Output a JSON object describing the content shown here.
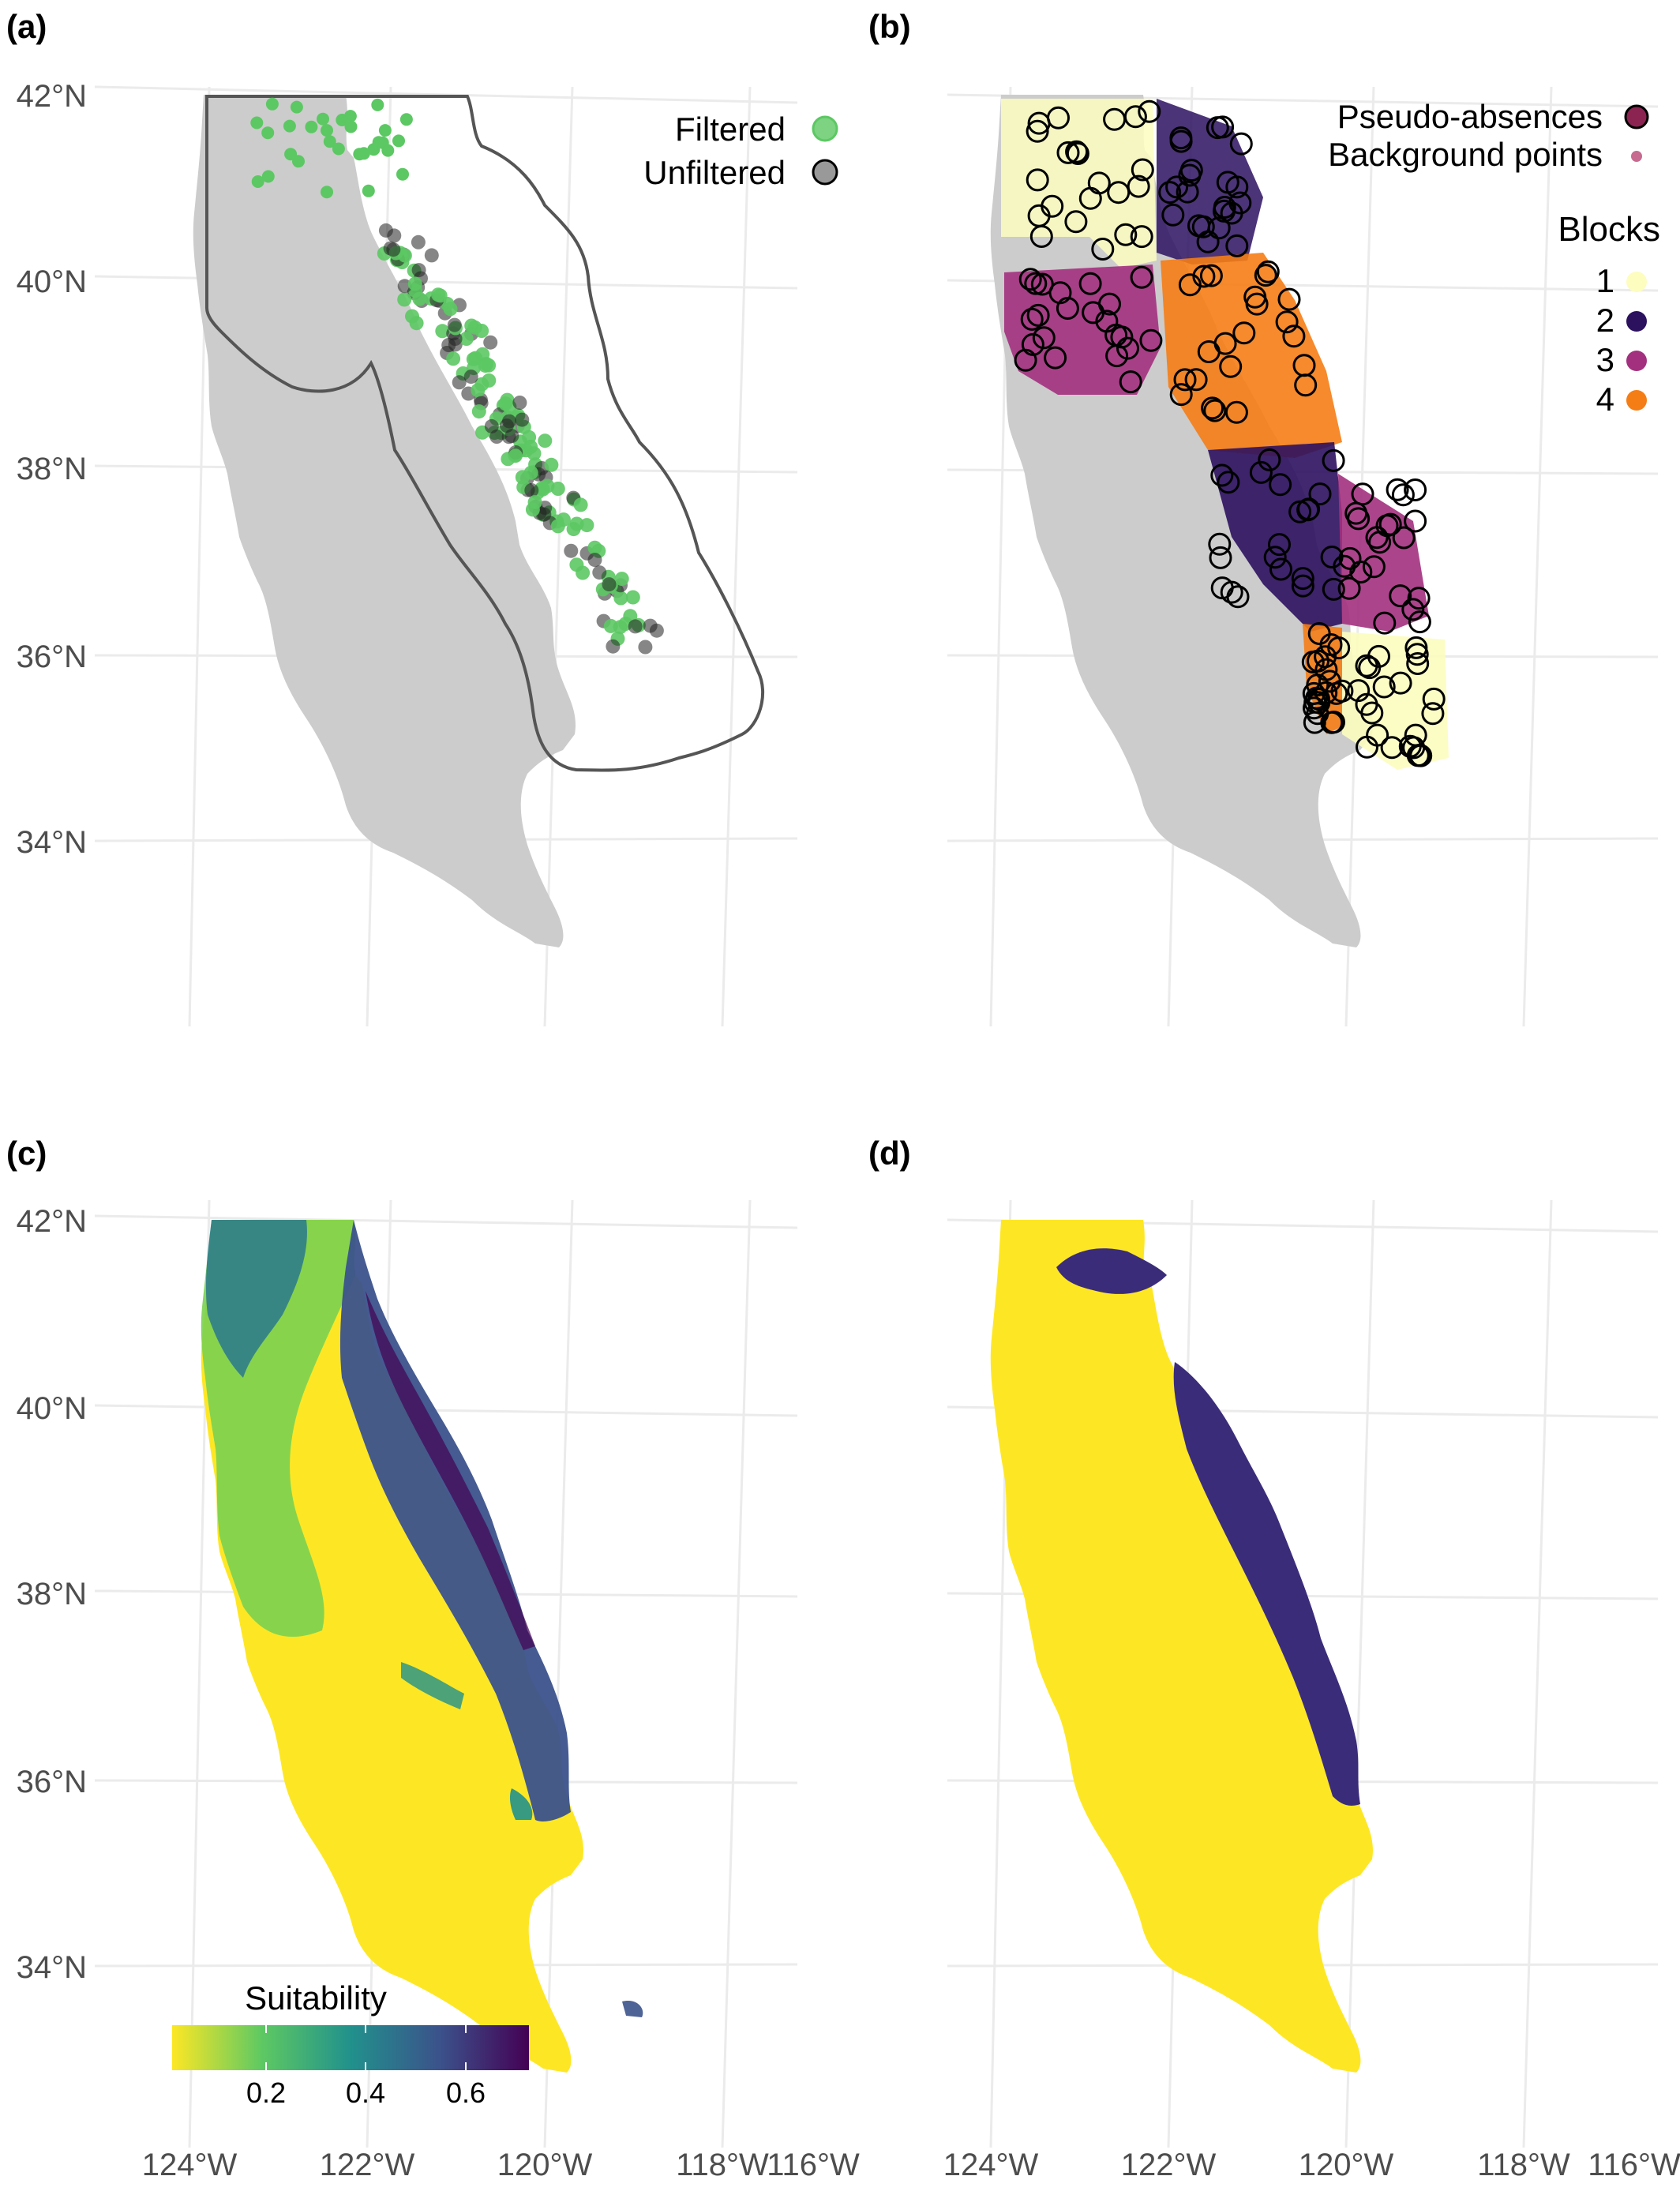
{
  "panels": {
    "a": {
      "label": "(a)"
    },
    "b": {
      "label": "(b)"
    },
    "c": {
      "label": "(c)"
    },
    "d": {
      "label": "(d)"
    }
  },
  "axes": {
    "lat_labels": [
      "42°N",
      "40°N",
      "38°N",
      "36°N",
      "34°N"
    ],
    "lon_labels": [
      "124°W",
      "122°W",
      "120°W",
      "118°W",
      "116°W"
    ]
  },
  "legend_a": {
    "items": [
      {
        "label": "Filtered",
        "color": "#5cc863"
      },
      {
        "label": "Unfiltered",
        "color": "#555555"
      }
    ]
  },
  "legend_b": {
    "points": [
      {
        "label": "Pseudo-absences",
        "color": "#8c2452"
      },
      {
        "label": "Background points",
        "color": "#c76a8f"
      }
    ],
    "blocks_title": "Blocks",
    "blocks": [
      {
        "label": "1",
        "color": "#fcfdbf"
      },
      {
        "label": "2",
        "color": "#2c115f"
      },
      {
        "label": "3",
        "color": "#a3307e"
      },
      {
        "label": "4",
        "color": "#f57d15"
      }
    ]
  },
  "legend_c": {
    "title": "Suitability",
    "ticks": [
      "0.2",
      "0.4",
      "0.6"
    ],
    "colors": [
      "#fde725",
      "#5ec962",
      "#21918c",
      "#3b528b",
      "#440154"
    ]
  },
  "map_colors": {
    "land": "#cccccc",
    "suitable": "#fde725",
    "unsuitable": "#3b2c7a",
    "outline": "#555555"
  }
}
